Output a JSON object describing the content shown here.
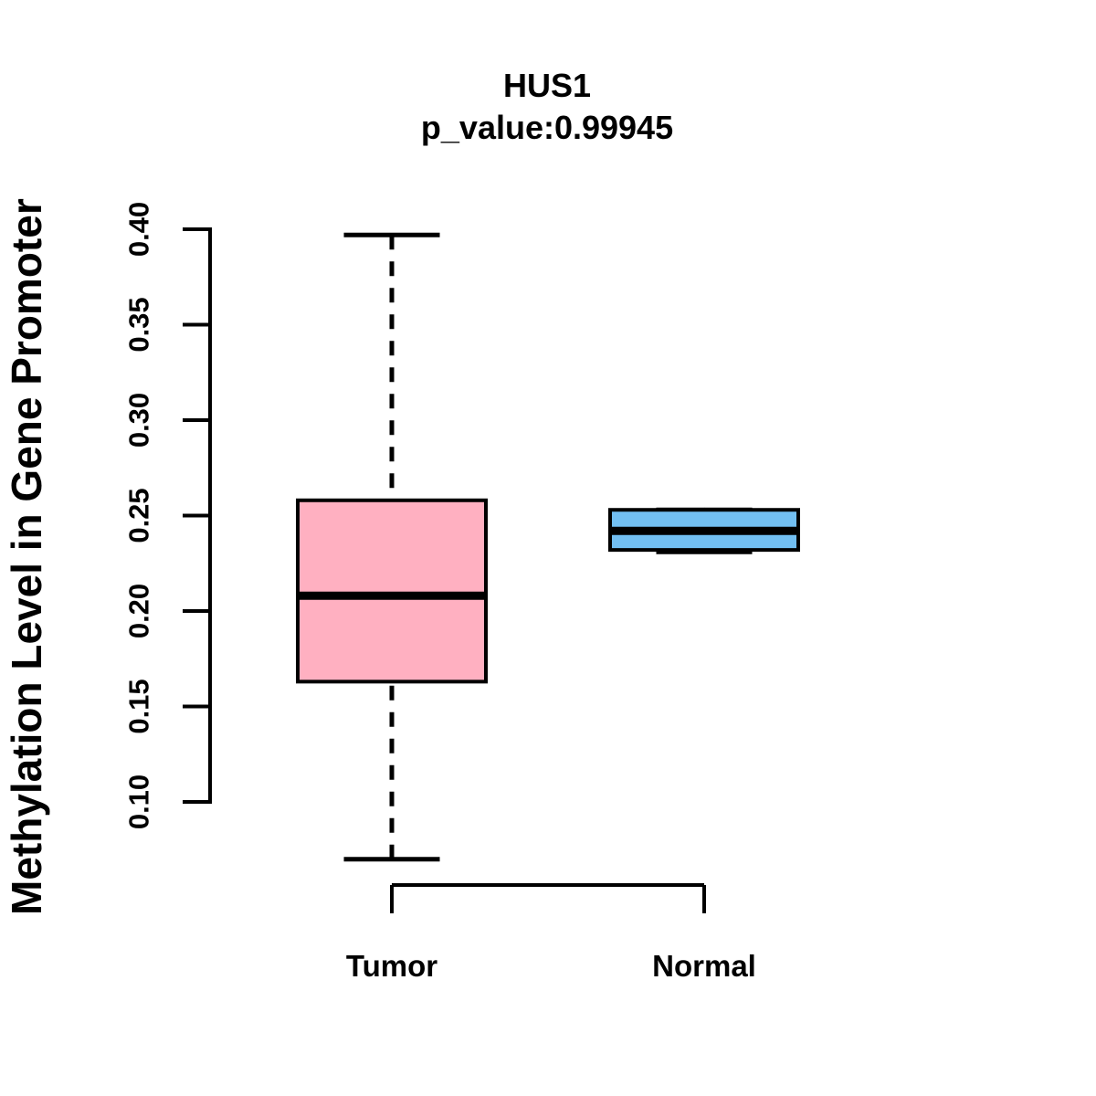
{
  "figure": {
    "background": "#FFFFFF",
    "text_color": "#000000"
  },
  "chart_data": {
    "type": "boxplot",
    "title": "HUS1",
    "subtitle": "p_value:0.99945",
    "p_value": "0.99945",
    "ylabel": "Methylation Level in Gene Promoter",
    "xlabel": "",
    "categories": [
      "Tumor",
      "Normal"
    ],
    "ylim": [
      0.1,
      0.4
    ],
    "yticks": [
      0.1,
      0.15,
      0.2,
      0.25,
      0.3,
      0.35,
      0.4
    ],
    "ytick_labels": [
      "0.10",
      "0.15",
      "0.20",
      "0.25",
      "0.30",
      "0.35",
      "0.40"
    ],
    "grid": false,
    "legend": "none",
    "axis_color": "#000000",
    "whisker_style": "dashed",
    "series": [
      {
        "name": "Tumor",
        "fill_color": "#FFB0C1",
        "border_color": "#000000",
        "whisker_min": 0.07,
        "q1": 0.163,
        "median": 0.208,
        "q3": 0.258,
        "whisker_max": 0.397
      },
      {
        "name": "Normal",
        "fill_color": "#72BFF2",
        "border_color": "#000000",
        "whisker_min": 0.231,
        "q1": 0.232,
        "median": 0.242,
        "q3": 0.253,
        "whisker_max": 0.253
      }
    ]
  }
}
